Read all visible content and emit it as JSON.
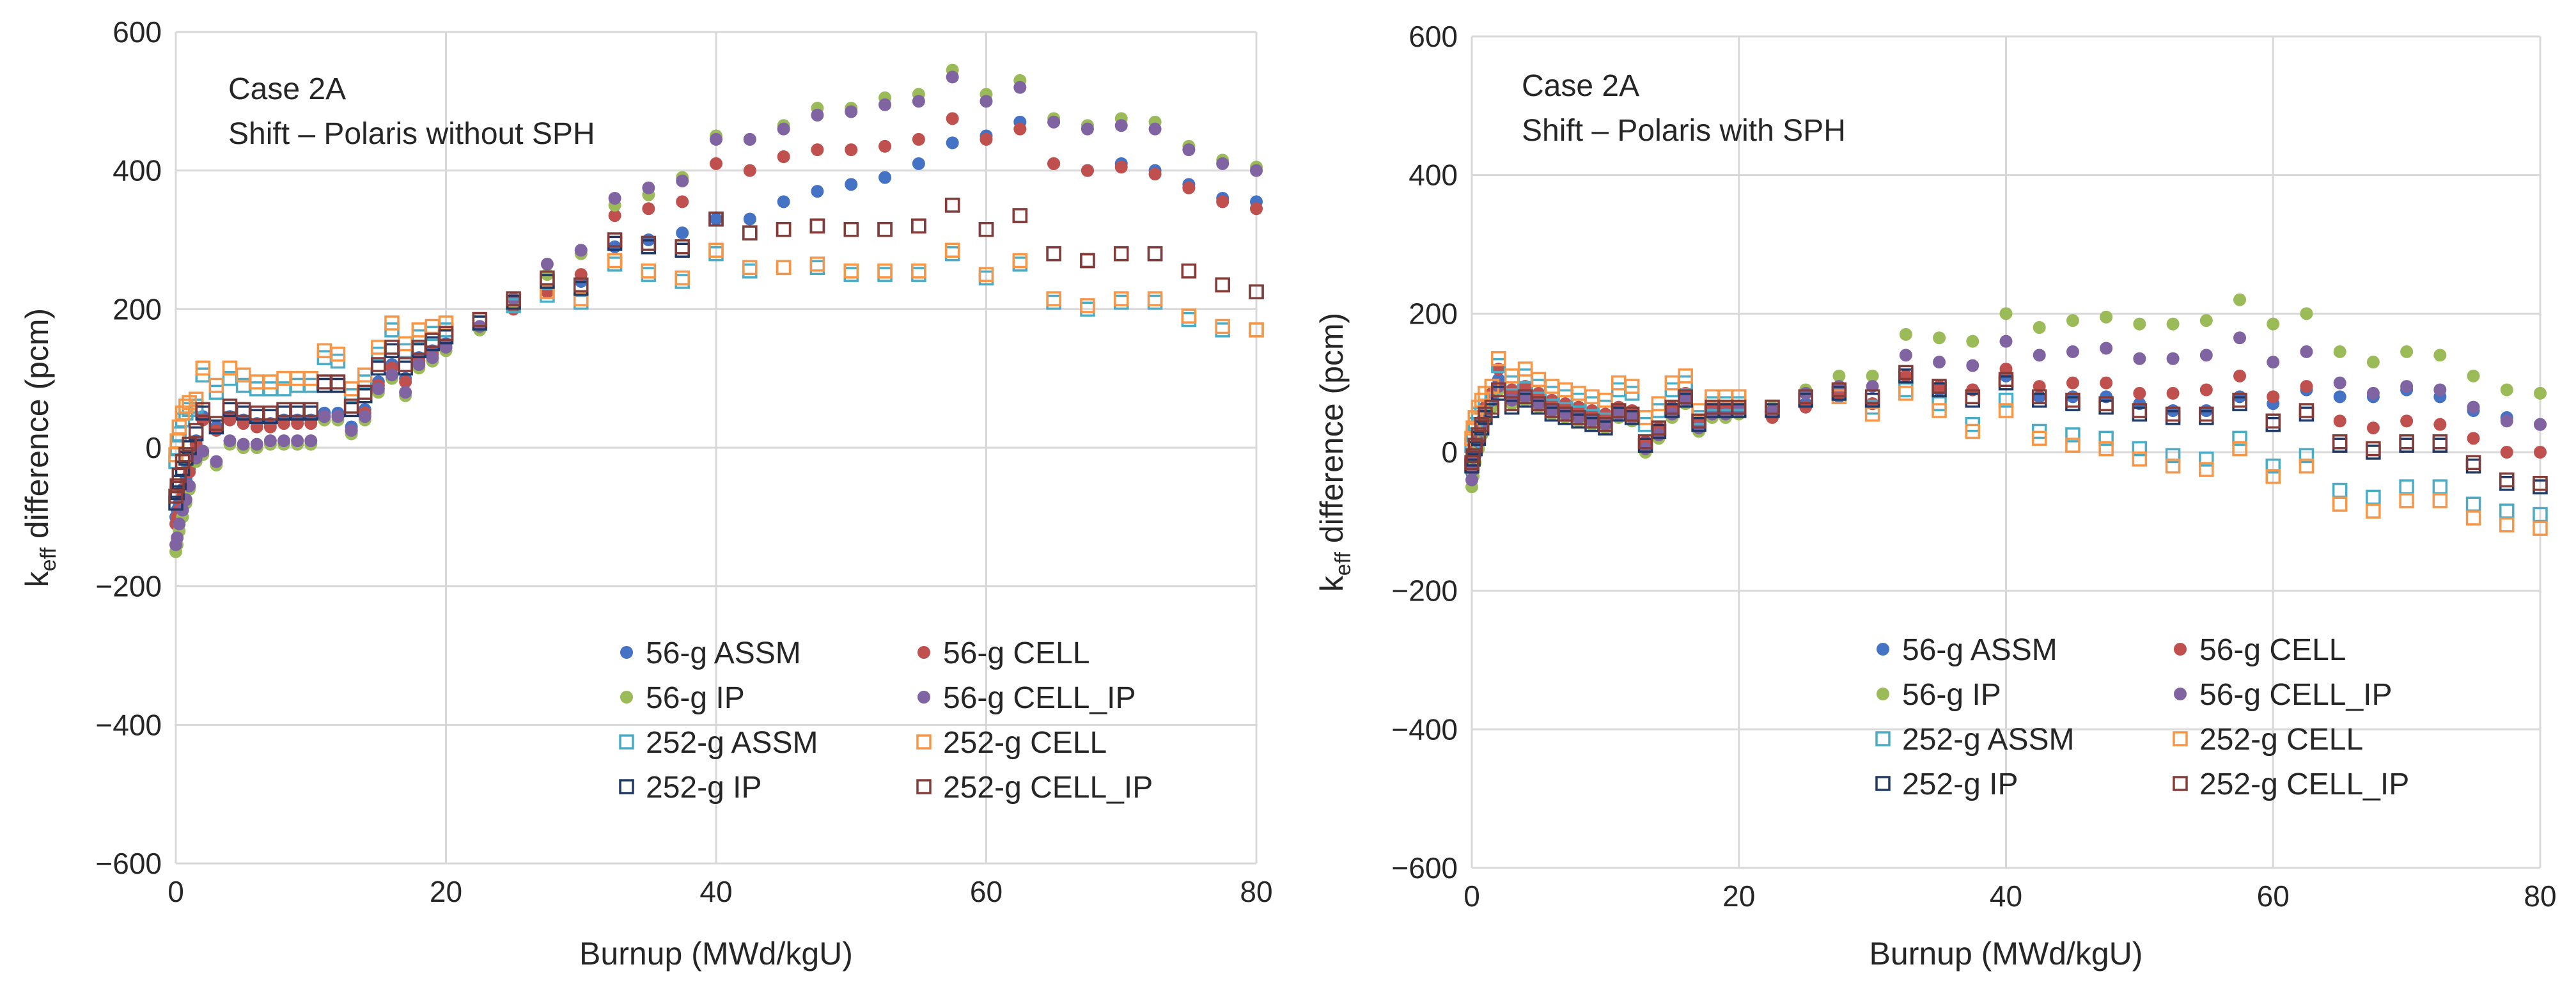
{
  "chart_data": [
    {
      "type": "scatter",
      "panel": "left",
      "annotation_lines": [
        "Case 2A",
        "Shift – Polaris without SPH"
      ],
      "xlabel": "Burnup (MWd/kgU)",
      "ylabel_main": "k",
      "ylabel_sub": "eff",
      "ylabel_rest": " difference (pcm)",
      "xlim": [
        0,
        80
      ],
      "ylim": [
        -600,
        600
      ],
      "xticks": [
        0,
        20,
        40,
        60,
        80
      ],
      "xtick_labels": [
        "0",
        "20",
        "40",
        "60",
        "80"
      ],
      "yticks": [
        -600,
        -400,
        -200,
        0,
        200,
        400,
        600
      ],
      "ytick_labels": [
        "−600",
        "−400",
        "−200",
        "0",
        "200",
        "400",
        "600"
      ],
      "grid": true,
      "legend_position": "bottom-right",
      "x": [
        0.0,
        0.1,
        0.25,
        0.5,
        0.75,
        1.0,
        1.5,
        2.0,
        3.0,
        4.0,
        5.0,
        6.0,
        7.0,
        8.0,
        9.0,
        10.0,
        11.0,
        12.0,
        13.0,
        14.0,
        15.0,
        16.0,
        17.0,
        18.0,
        19.0,
        20.0,
        22.5,
        25.0,
        27.5,
        30.0,
        32.5,
        35.0,
        37.5,
        40.0,
        42.5,
        45.0,
        47.5,
        50.0,
        52.5,
        55.0,
        57.5,
        60.0,
        62.5,
        65.0,
        67.5,
        70.0,
        72.5,
        75.0,
        77.5,
        80.0
      ],
      "series": [
        {
          "name": "56-g ASSM",
          "marker": "filled",
          "color": "#4472C4",
          "values": [
            -100,
            -90,
            -80,
            -60,
            -45,
            -30,
            10,
            45,
            30,
            45,
            40,
            35,
            35,
            40,
            40,
            40,
            50,
            50,
            30,
            55,
            95,
            120,
            100,
            130,
            140,
            150,
            175,
            205,
            225,
            240,
            290,
            300,
            310,
            330,
            330,
            355,
            370,
            380,
            390,
            410,
            440,
            450,
            470,
            410,
            400,
            410,
            400,
            380,
            360,
            355
          ]
        },
        {
          "name": "56-g CELL",
          "marker": "filled",
          "color": "#C0504D",
          "values": [
            -110,
            -100,
            -90,
            -70,
            -55,
            -35,
            5,
            40,
            25,
            40,
            35,
            30,
            30,
            35,
            35,
            35,
            45,
            45,
            25,
            50,
            90,
            115,
            95,
            125,
            135,
            145,
            170,
            200,
            225,
            250,
            335,
            345,
            355,
            410,
            400,
            420,
            430,
            430,
            435,
            445,
            475,
            445,
            460,
            410,
            400,
            405,
            395,
            375,
            355,
            345
          ]
        },
        {
          "name": "56-g IP",
          "marker": "filled",
          "color": "#9BBB59",
          "values": [
            -150,
            -140,
            -120,
            -100,
            -80,
            -60,
            -20,
            -10,
            -25,
            5,
            0,
            0,
            5,
            5,
            5,
            5,
            40,
            40,
            20,
            40,
            80,
            100,
            75,
            115,
            125,
            140,
            170,
            210,
            250,
            280,
            350,
            365,
            390,
            450,
            445,
            465,
            490,
            490,
            505,
            510,
            545,
            510,
            530,
            475,
            465,
            475,
            470,
            435,
            415,
            405
          ]
        },
        {
          "name": "56-g CELL_IP",
          "marker": "filled",
          "color": "#8064A2",
          "values": [
            -140,
            -130,
            -110,
            -90,
            -75,
            -55,
            -15,
            -5,
            -20,
            10,
            5,
            5,
            10,
            10,
            10,
            10,
            45,
            45,
            25,
            45,
            85,
            105,
            80,
            120,
            130,
            145,
            175,
            215,
            265,
            285,
            360,
            375,
            385,
            445,
            445,
            460,
            480,
            485,
            495,
            500,
            535,
            500,
            520,
            470,
            460,
            465,
            460,
            430,
            410,
            400
          ]
        },
        {
          "name": "252-g ASSM",
          "marker": "hollow",
          "color": "#4BACC6",
          "values": [
            -20,
            0,
            20,
            40,
            50,
            55,
            60,
            105,
            80,
            100,
            90,
            85,
            85,
            85,
            90,
            90,
            130,
            125,
            75,
            95,
            135,
            170,
            140,
            160,
            165,
            170,
            180,
            205,
            220,
            210,
            265,
            250,
            240,
            280,
            255,
            260,
            260,
            250,
            250,
            250,
            280,
            245,
            265,
            210,
            200,
            210,
            210,
            185,
            170,
            170
          ]
        },
        {
          "name": "252-g CELL",
          "marker": "hollow",
          "color": "#F79646",
          "values": [
            -10,
            10,
            30,
            50,
            60,
            65,
            70,
            115,
            90,
            115,
            105,
            95,
            95,
            100,
            100,
            100,
            140,
            135,
            85,
            105,
            145,
            180,
            150,
            170,
            175,
            180,
            185,
            210,
            225,
            215,
            270,
            255,
            245,
            285,
            260,
            260,
            265,
            255,
            255,
            255,
            285,
            250,
            270,
            215,
            205,
            215,
            215,
            190,
            175,
            170
          ]
        },
        {
          "name": "252-g IP",
          "marker": "hollow",
          "color": "#1F3864",
          "values": [
            -80,
            -65,
            -50,
            -30,
            -15,
            0,
            20,
            50,
            30,
            55,
            50,
            45,
            45,
            50,
            50,
            50,
            90,
            90,
            55,
            75,
            115,
            140,
            115,
            140,
            150,
            160,
            180,
            210,
            240,
            230,
            295,
            290,
            285,
            330,
            310,
            315,
            320,
            315,
            315,
            320,
            350,
            315,
            335,
            280,
            270,
            280,
            280,
            255,
            235,
            225
          ]
        },
        {
          "name": "252-g CELL_IP",
          "marker": "hollow",
          "color": "#843C39",
          "values": [
            -70,
            -55,
            -40,
            -20,
            -10,
            5,
            25,
            55,
            35,
            60,
            55,
            50,
            50,
            55,
            55,
            55,
            95,
            95,
            60,
            80,
            120,
            145,
            120,
            145,
            155,
            165,
            185,
            215,
            245,
            235,
            300,
            295,
            290,
            330,
            310,
            315,
            320,
            315,
            315,
            320,
            350,
            315,
            335,
            280,
            270,
            280,
            280,
            255,
            235,
            225
          ]
        }
      ]
    },
    {
      "type": "scatter",
      "panel": "right",
      "annotation_lines": [
        "Case 2A",
        "Shift – Polaris with SPH"
      ],
      "xlabel": "Burnup (MWd/kgU)",
      "ylabel_main": "k",
      "ylabel_sub": "eff",
      "ylabel_rest": " difference (pcm)",
      "xlim": [
        0,
        80
      ],
      "ylim": [
        -600,
        600
      ],
      "xticks": [
        0,
        20,
        40,
        60,
        80
      ],
      "xtick_labels": [
        "0",
        "20",
        "40",
        "60",
        "80"
      ],
      "yticks": [
        -600,
        -400,
        -200,
        0,
        200,
        400,
        600
      ],
      "ytick_labels": [
        "−600",
        "−400",
        "−200",
        "0",
        "200",
        "400",
        "600"
      ],
      "grid": true,
      "legend_position": "bottom-right",
      "x": [
        0.0,
        0.1,
        0.25,
        0.5,
        0.75,
        1.0,
        1.5,
        2.0,
        3.0,
        4.0,
        5.0,
        6.0,
        7.0,
        8.0,
        9.0,
        10.0,
        11.0,
        12.0,
        13.0,
        14.0,
        15.0,
        16.0,
        17.0,
        18.0,
        19.0,
        20.0,
        22.5,
        25.0,
        27.5,
        30.0,
        32.5,
        35.0,
        37.5,
        40.0,
        42.5,
        45.0,
        47.5,
        50.0,
        52.5,
        55.0,
        57.5,
        60.0,
        62.5,
        65.0,
        67.5,
        70.0,
        72.5,
        75.0,
        77.5,
        80.0
      ],
      "series": [
        {
          "name": "56-g ASSM",
          "marker": "filled",
          "color": "#4472C4",
          "values": [
            -30,
            -15,
            0,
            20,
            40,
            60,
            80,
            105,
            85,
            90,
            80,
            70,
            65,
            60,
            55,
            50,
            60,
            55,
            10,
            30,
            60,
            80,
            40,
            60,
            60,
            60,
            55,
            70,
            80,
            70,
            110,
            90,
            90,
            110,
            80,
            80,
            80,
            70,
            60,
            60,
            80,
            70,
            90,
            80,
            80,
            90,
            80,
            60,
            50,
            40
          ]
        },
        {
          "name": "56-g CELL",
          "marker": "filled",
          "color": "#C0504D",
          "values": [
            -25,
            -10,
            5,
            25,
            45,
            65,
            85,
            120,
            90,
            95,
            85,
            75,
            70,
            65,
            60,
            55,
            65,
            60,
            15,
            35,
            65,
            85,
            45,
            65,
            65,
            65,
            50,
            65,
            85,
            70,
            110,
            95,
            90,
            120,
            95,
            100,
            100,
            85,
            85,
            90,
            110,
            80,
            95,
            45,
            35,
            45,
            40,
            20,
            0,
            0
          ]
        },
        {
          "name": "56-g IP",
          "marker": "filled",
          "color": "#9BBB59",
          "values": [
            -50,
            -35,
            -15,
            5,
            25,
            45,
            65,
            90,
            70,
            75,
            65,
            55,
            50,
            45,
            40,
            35,
            50,
            45,
            0,
            20,
            50,
            70,
            30,
            50,
            50,
            55,
            65,
            90,
            110,
            110,
            170,
            165,
            160,
            200,
            180,
            190,
            195,
            185,
            185,
            190,
            220,
            185,
            200,
            145,
            130,
            145,
            140,
            110,
            90,
            85
          ]
        },
        {
          "name": "56-g CELL_IP",
          "marker": "filled",
          "color": "#8064A2",
          "values": [
            -40,
            -25,
            -5,
            15,
            35,
            55,
            75,
            95,
            75,
            80,
            70,
            60,
            55,
            50,
            45,
            40,
            55,
            50,
            5,
            25,
            55,
            75,
            35,
            55,
            55,
            60,
            60,
            85,
            95,
            95,
            140,
            130,
            125,
            160,
            140,
            145,
            150,
            135,
            135,
            140,
            165,
            130,
            145,
            100,
            85,
            95,
            90,
            65,
            45,
            40
          ]
        },
        {
          "name": "252-g ASSM",
          "marker": "hollow",
          "color": "#4BACC6",
          "values": [
            10,
            25,
            40,
            55,
            65,
            75,
            85,
            125,
            100,
            110,
            95,
            85,
            80,
            75,
            70,
            65,
            90,
            85,
            40,
            60,
            90,
            100,
            50,
            70,
            70,
            70,
            65,
            75,
            85,
            65,
            90,
            70,
            40,
            75,
            30,
            25,
            20,
            5,
            -5,
            -10,
            20,
            -20,
            -5,
            -55,
            -65,
            -50,
            -50,
            -75,
            -85,
            -90
          ]
        },
        {
          "name": "252-g CELL",
          "marker": "hollow",
          "color": "#F79646",
          "values": [
            20,
            35,
            50,
            65,
            75,
            85,
            95,
            135,
            110,
            120,
            105,
            95,
            90,
            85,
            80,
            75,
            100,
            95,
            50,
            70,
            100,
            110,
            60,
            80,
            80,
            80,
            65,
            75,
            80,
            55,
            85,
            60,
            30,
            60,
            20,
            10,
            5,
            -10,
            -20,
            -25,
            5,
            -35,
            -20,
            -75,
            -85,
            -70,
            -70,
            -95,
            -105,
            -110
          ]
        },
        {
          "name": "252-g IP",
          "marker": "hollow",
          "color": "#1F3864",
          "values": [
            -20,
            -10,
            5,
            20,
            35,
            50,
            60,
            85,
            65,
            75,
            65,
            55,
            50,
            45,
            40,
            35,
            55,
            50,
            10,
            30,
            60,
            75,
            40,
            60,
            60,
            60,
            60,
            75,
            85,
            75,
            110,
            90,
            75,
            100,
            75,
            70,
            65,
            55,
            50,
            50,
            70,
            40,
            55,
            10,
            0,
            10,
            10,
            -20,
            -45,
            -50
          ]
        },
        {
          "name": "252-g CELL_IP",
          "marker": "hollow",
          "color": "#843C39",
          "values": [
            -15,
            -5,
            10,
            25,
            40,
            55,
            65,
            90,
            70,
            80,
            70,
            60,
            55,
            50,
            45,
            40,
            60,
            55,
            15,
            35,
            65,
            80,
            45,
            65,
            65,
            65,
            65,
            80,
            90,
            80,
            115,
            95,
            80,
            105,
            80,
            75,
            70,
            60,
            55,
            55,
            75,
            45,
            60,
            15,
            5,
            15,
            15,
            -15,
            -40,
            -45
          ]
        }
      ]
    }
  ]
}
